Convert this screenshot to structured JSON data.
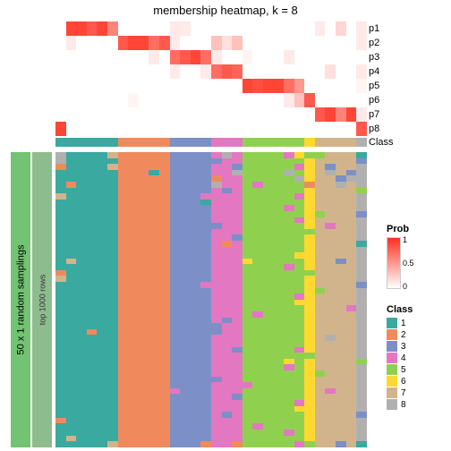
{
  "title": "membership heatmap, k = 8",
  "side_labels": {
    "outer": "50 x 1 random samplings",
    "inner": "top 1000 rows"
  },
  "class_label": "Class",
  "prob_rows": [
    "p1",
    "p2",
    "p3",
    "p4",
    "p5",
    "p6",
    "p7",
    "p8"
  ],
  "prob_legend": {
    "title": "Prob",
    "ticks": [
      "1",
      "0.5",
      "0"
    ],
    "colors": [
      "#ff3020",
      "#fca082",
      "#ffffff"
    ]
  },
  "class_legend": {
    "title": "Class",
    "items": [
      {
        "n": "1",
        "c": "#3aa99f"
      },
      {
        "n": "2",
        "c": "#f08a5d"
      },
      {
        "n": "3",
        "c": "#7c8fc7"
      },
      {
        "n": "4",
        "c": "#e377c2"
      },
      {
        "n": "5",
        "c": "#8fd14f"
      },
      {
        "n": "6",
        "c": "#ffd92f"
      },
      {
        "n": "7",
        "c": "#d2b48c"
      },
      {
        "n": "8",
        "c": "#b0b0b0"
      }
    ]
  },
  "class_colors": {
    "1": "#3aa99f",
    "2": "#f08a5d",
    "3": "#7c8fc7",
    "4": "#e377c2",
    "5": "#8fd14f",
    "6": "#ffd92f",
    "7": "#d2b48c",
    "8": "#b0b0b0"
  },
  "n_cols": 30,
  "n_rows": 50,
  "col_class": [
    1,
    1,
    1,
    1,
    1,
    1,
    2,
    2,
    2,
    2,
    2,
    3,
    3,
    3,
    3,
    4,
    4,
    4,
    5,
    5,
    5,
    5,
    5,
    5,
    6,
    7,
    7,
    7,
    7,
    8
  ],
  "prob_matrix": [
    [
      0,
      0.9,
      0.9,
      0.8,
      0.9,
      0.6,
      0,
      0,
      0,
      0,
      0,
      0.1,
      0.1,
      0,
      0,
      0,
      0,
      0,
      0,
      0,
      0,
      0,
      0,
      0,
      0,
      0.1,
      0,
      0.2,
      0,
      0.1
    ],
    [
      0,
      0.1,
      0,
      0,
      0,
      0,
      0.8,
      0.9,
      0.9,
      0.7,
      0.8,
      0.1,
      0,
      0,
      0,
      0.3,
      0.15,
      0.3,
      0,
      0,
      0,
      0,
      0,
      0,
      0,
      0,
      0,
      0,
      0,
      0.1
    ],
    [
      0,
      0,
      0,
      0,
      0,
      0,
      0,
      0,
      0,
      0.1,
      0,
      0.7,
      0.8,
      0.9,
      0.7,
      0.1,
      0,
      0,
      0.05,
      0,
      0,
      0,
      0.1,
      0,
      0,
      0,
      0,
      0,
      0,
      0
    ],
    [
      0,
      0,
      0,
      0,
      0,
      0,
      0,
      0,
      0,
      0,
      0,
      0.1,
      0,
      0,
      0.1,
      0.7,
      0.8,
      0.75,
      0,
      0,
      0,
      0,
      0,
      0,
      0,
      0,
      0.15,
      0,
      0,
      0.1
    ],
    [
      0,
      0,
      0,
      0,
      0,
      0,
      0,
      0,
      0,
      0,
      0,
      0,
      0,
      0,
      0,
      0,
      0,
      0,
      0.9,
      0.85,
      0.9,
      0.9,
      0.7,
      0.5,
      0,
      0,
      0,
      0,
      0,
      0.05
    ],
    [
      0,
      0,
      0,
      0,
      0,
      0,
      0,
      0.05,
      0,
      0,
      0,
      0,
      0,
      0,
      0,
      0,
      0,
      0,
      0,
      0,
      0,
      0,
      0.1,
      0.3,
      0.8,
      0,
      0,
      0,
      0,
      0
    ],
    [
      0,
      0,
      0,
      0,
      0,
      0,
      0,
      0,
      0,
      0,
      0,
      0,
      0,
      0,
      0,
      0,
      0,
      0,
      0,
      0,
      0,
      0,
      0,
      0,
      0,
      0.8,
      0.9,
      0.6,
      0.9,
      0.1
    ],
    [
      0.9,
      0,
      0,
      0,
      0,
      0,
      0,
      0,
      0,
      0,
      0,
      0,
      0,
      0,
      0,
      0,
      0,
      0,
      0,
      0,
      0,
      0,
      0,
      0,
      0,
      0,
      0,
      0,
      0,
      0.8
    ]
  ],
  "col_overrides": {
    "0": {
      "0": 8,
      "1": 8,
      "2": 2,
      "7": 7,
      "20": 2,
      "21": 7,
      "45": 2
    },
    "1": {
      "5": 2,
      "18": 7,
      "48": 7
    },
    "3": {
      "30": 2
    },
    "5": {
      "0": 7,
      "2": 7,
      "49": 7
    },
    "9": {
      "3": 1
    },
    "11": {
      "40": 4
    },
    "14": {
      "7": 4,
      "8": 1,
      "22": 4,
      "49": 2
    },
    "15": {
      "1": 3,
      "4": 2,
      "5": 8,
      "12": 3,
      "29": 3,
      "30": 3,
      "38": 3
    },
    "16": {
      "0": 8,
      "6": 3,
      "15": 2,
      "28": 3,
      "44": 3
    },
    "17": {
      "2": 3,
      "3": 8,
      "14": 3,
      "33": 3,
      "41": 3,
      "49": 2
    },
    "18": {
      "18": 6,
      "39": 4
    },
    "19": {
      "5": 4,
      "27": 4,
      "46": 4
    },
    "22": {
      "0": 4,
      "3": 8,
      "9": 4,
      "19": 4,
      "35": 6,
      "36": 4,
      "47": 4
    },
    "23": {
      "0": 6,
      "2": 4,
      "4": 8,
      "7": 4,
      "11": 4,
      "17": 6,
      "24": 4,
      "25": 6,
      "33": 4,
      "42": 4,
      "43": 6,
      "49": 4
    },
    "24": {
      "0": 5,
      "5": 2,
      "13": 5,
      "20": 5,
      "34": 5,
      "49": 5
    },
    "25": {
      "0": 5,
      "10": 5,
      "23": 5,
      "37": 5
    },
    "26": {
      "2": 3,
      "3": 8,
      "12": 4,
      "31": 8,
      "40": 4
    },
    "27": {
      "4": 3,
      "5": 8,
      "18": 3,
      "49": 3
    },
    "28": {
      "3": 3,
      "4": 8,
      "26": 4
    },
    "29": {
      "0": 1,
      "1": 3,
      "6": 5,
      "10": 3,
      "15": 1,
      "22": 3,
      "35": 5,
      "44": 3,
      "49": 1
    }
  }
}
